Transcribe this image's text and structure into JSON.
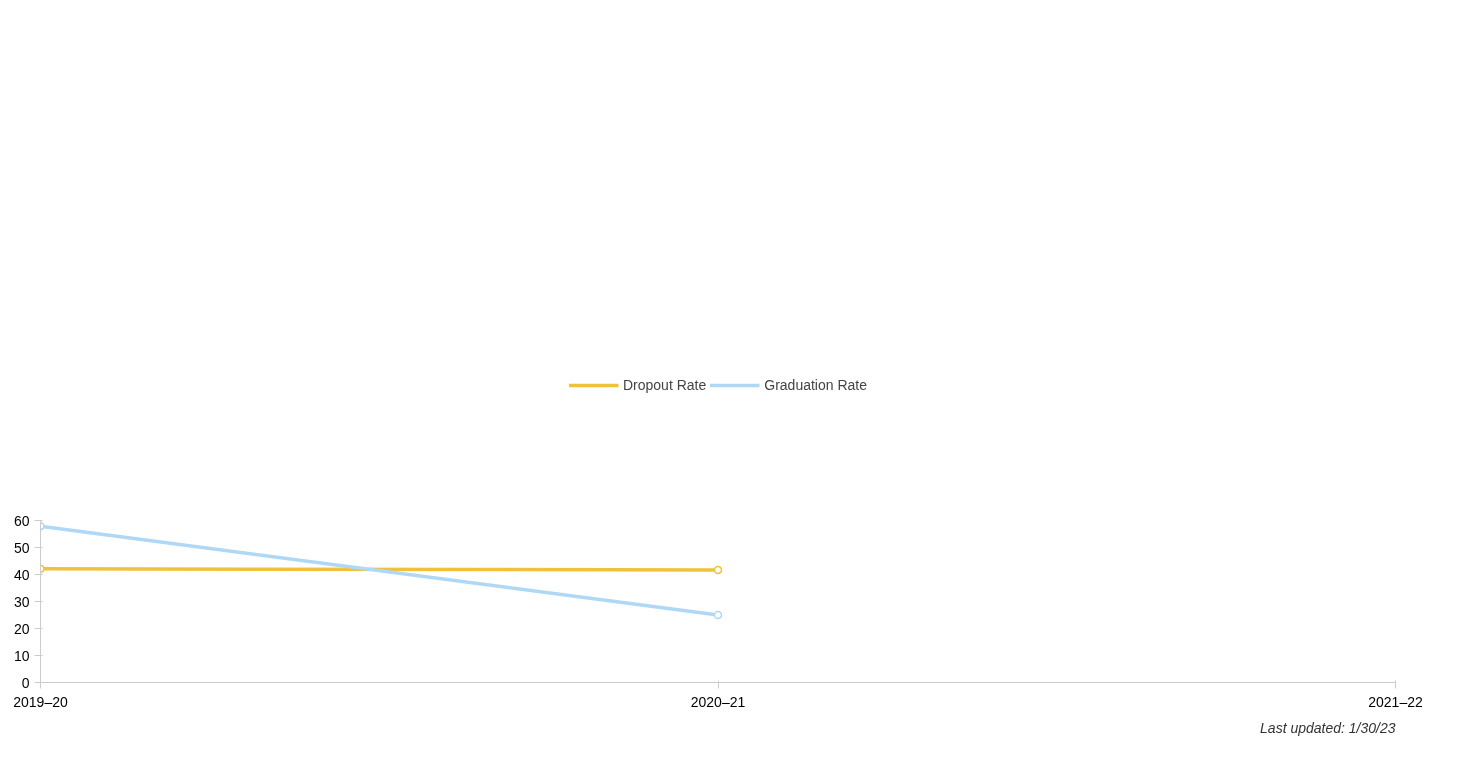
{
  "chart_data": {
    "type": "line",
    "categories": [
      "2019–20",
      "2020–21",
      "2021–22"
    ],
    "series": [
      {
        "name": "Dropout Rate",
        "color": "#f0c23c",
        "values": [
          42.1,
          41.7,
          null
        ]
      },
      {
        "name": "Graduation Rate",
        "color": "#aed8f5",
        "values": [
          57.9,
          25.0,
          null
        ]
      }
    ],
    "ylim": [
      0,
      60
    ],
    "yticks": [
      0,
      10,
      20,
      30,
      40,
      50,
      60
    ],
    "grid": false,
    "legend": "top",
    "marker": "circle",
    "line_style": "solid",
    "annotations": [
      "Last updated: 1/30/23"
    ]
  }
}
